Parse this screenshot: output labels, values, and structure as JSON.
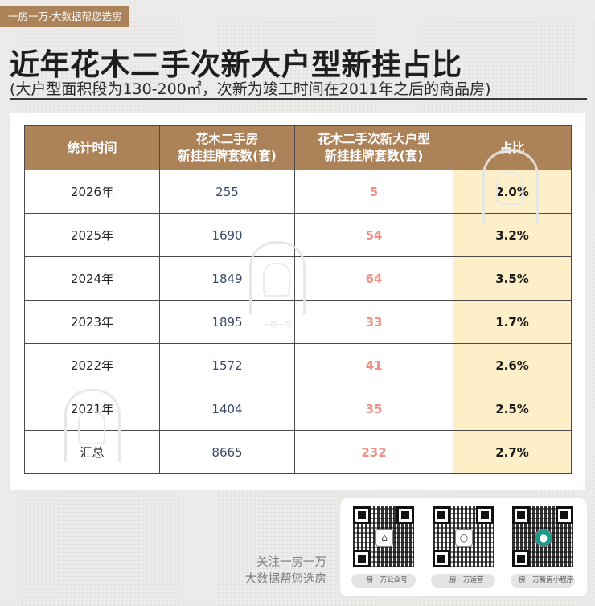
{
  "brand_tag": "一房一万·大数据帮您选房",
  "title": "近年花木二手次新大户型新挂占比",
  "subtitle": "(大户型面积段为130-200㎡，次新为竣工时间在2011年之后的商品房)",
  "table": {
    "headers": [
      "统计时间",
      "花木二手房\n新挂挂牌套数(套)",
      "花木二手次新大户型\n新挂挂牌套数(套)",
      "占比"
    ],
    "rows": [
      {
        "period": "2026年",
        "total": "255",
        "large": "5",
        "ratio": "2.0%"
      },
      {
        "period": "2025年",
        "total": "1690",
        "large": "54",
        "ratio": "3.2%"
      },
      {
        "period": "2024年",
        "total": "1849",
        "large": "64",
        "ratio": "3.5%"
      },
      {
        "period": "2023年",
        "total": "1895",
        "large": "33",
        "ratio": "1.7%"
      },
      {
        "period": "2022年",
        "total": "1572",
        "large": "41",
        "ratio": "2.6%"
      },
      {
        "period": "2021年",
        "total": "1404",
        "large": "35",
        "ratio": "2.5%"
      },
      {
        "period": "汇总",
        "total": "8665",
        "large": "232",
        "ratio": "2.7%"
      }
    ]
  },
  "watermark_text": "一房一万",
  "footer": {
    "follow_line1": "关注一房一万",
    "follow_line2": "大数据帮您选房",
    "qr_codes": [
      {
        "label": "一房一万公众号",
        "center_icon": "house-icon"
      },
      {
        "label": "一房一万运营",
        "center_icon": "chat-icon"
      },
      {
        "label": "一房一万新房小程序",
        "center_icon": "avatar-icon"
      }
    ]
  },
  "colors": {
    "header_brown": "#ac8258",
    "ratio_highlight": "#fdf0c8",
    "large_value_pink": "#ef8f86",
    "total_value_navy": "#3c4a6a"
  }
}
